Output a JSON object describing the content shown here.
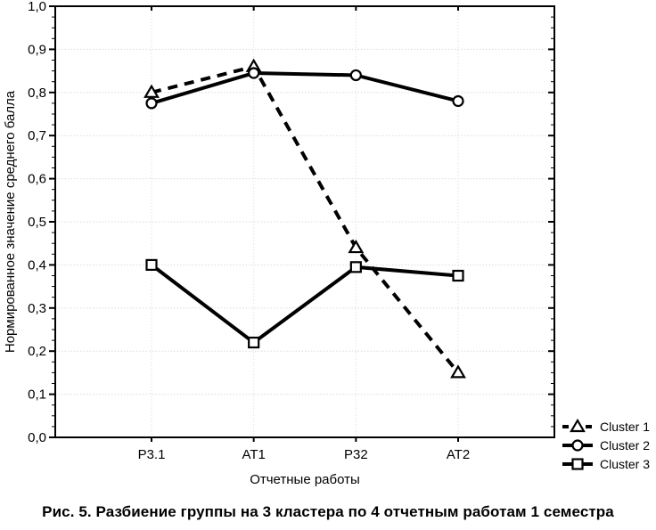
{
  "caption": "Рис. 5. Разбиение группы на 3 кластера по 4 отчетным работам 1 семестра",
  "chart_data": {
    "type": "line",
    "title": "",
    "categories": [
      "Р3.1",
      "АТ1",
      "Р32",
      "АТ2"
    ],
    "series": [
      {
        "name": "Cluster 1",
        "marker": "triangle",
        "line": "dashed",
        "values": [
          0.8,
          0.86,
          0.44,
          0.15
        ]
      },
      {
        "name": "Cluster 2",
        "marker": "circle",
        "line": "solid",
        "values": [
          0.775,
          0.845,
          0.84,
          0.78
        ]
      },
      {
        "name": "Cluster 3",
        "marker": "square",
        "line": "solid",
        "values": [
          0.4,
          0.22,
          0.395,
          0.375
        ]
      }
    ],
    "xlabel": "Отчетные работы",
    "ylabel": "Нормированное значение среднего балла",
    "ylim": [
      0.0,
      1.0
    ],
    "y_major_step": 0.1,
    "y_minor_step": 0.025,
    "y_tick_labels": [
      "0,0",
      "0,1",
      "0,2",
      "0,3",
      "0,4",
      "0,5",
      "0,6",
      "0,7",
      "0,8",
      "0,9",
      "1,0"
    ],
    "grid": true,
    "legend_position": "bottom-right",
    "legend": [
      "Cluster 1",
      "Cluster 2",
      "Cluster 3"
    ],
    "colors": {
      "series": "#000000",
      "marker_fill": "#ffffff",
      "grid_h": "#dcdcdc",
      "grid_v": "#e3e3e3",
      "frame": "#000000",
      "background": "#ffffff"
    }
  }
}
